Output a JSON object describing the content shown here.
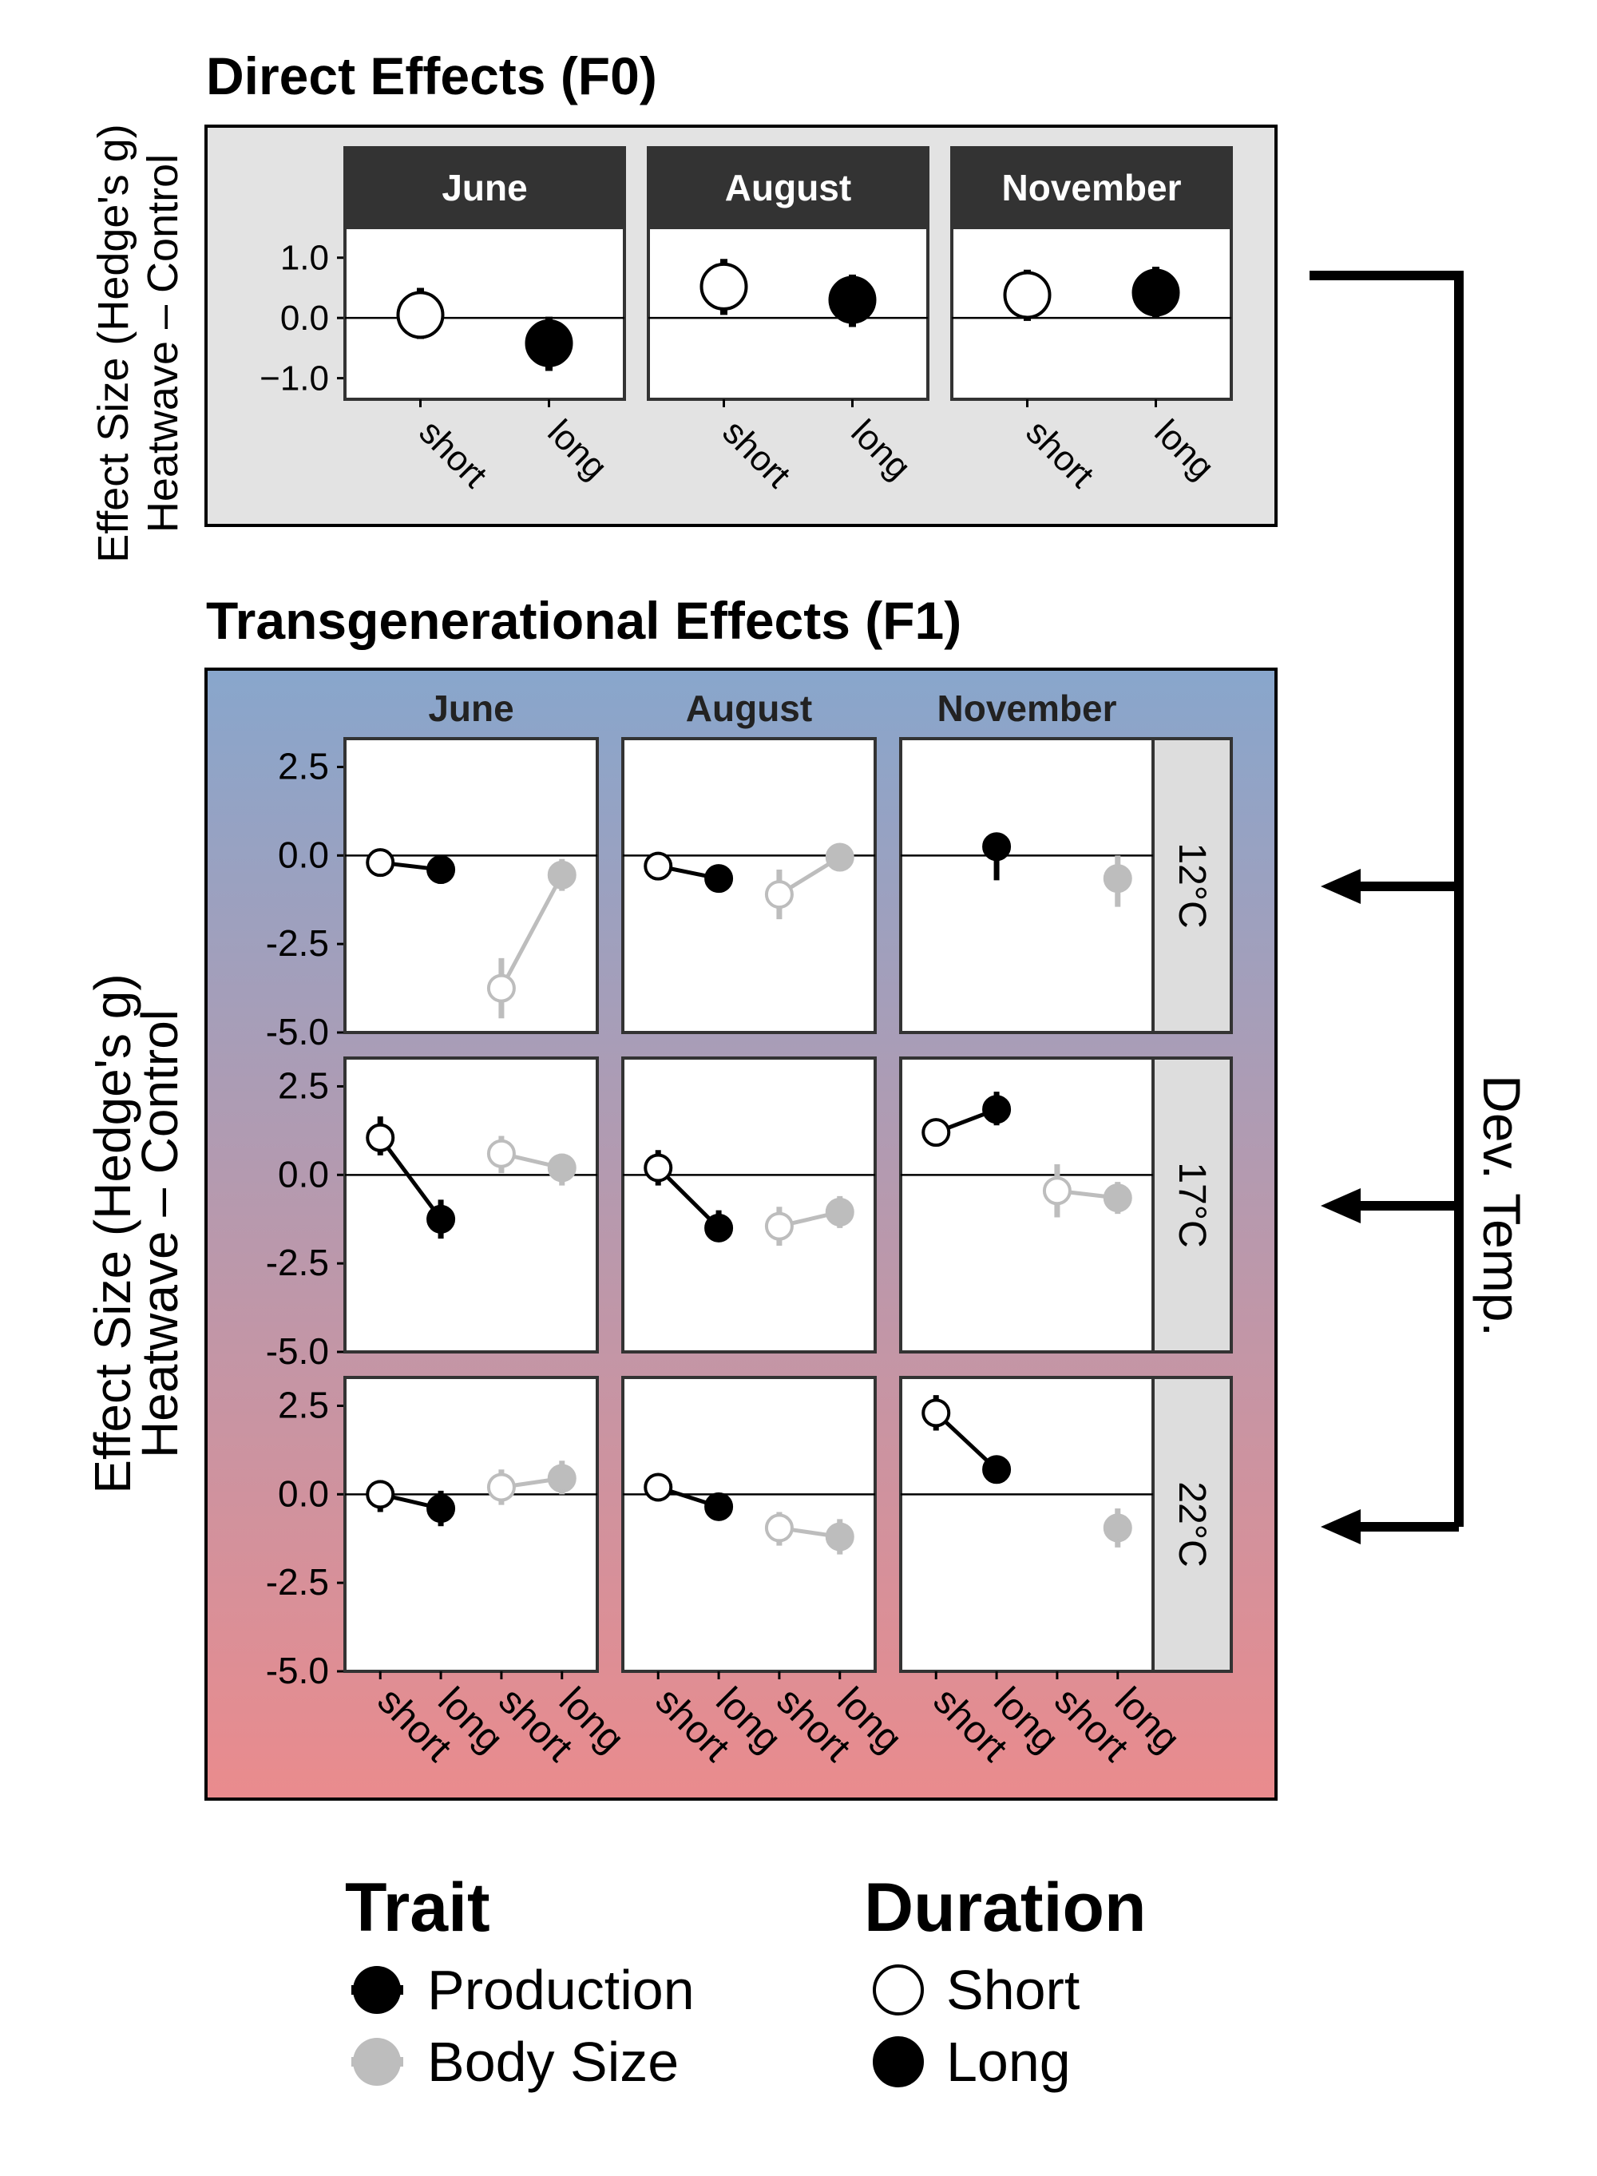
{
  "colors": {
    "production": "#000000",
    "body_size": "#bdbdbd",
    "f0_background": "#e3e3e3",
    "f1_gradient_top": "#88a6cc",
    "f1_gradient_bottom": "#ea8b8d",
    "strip_dark": "#333333",
    "strip_light": "#dddddd"
  },
  "chart_data": [
    {
      "id": "F0",
      "type": "scatter",
      "title": "Direct Effects (F0)",
      "ylabel_line1": "Effect Size (Hedge's g)",
      "ylabel_line2": "Heatwave – Control",
      "ylim": [
        -1.35,
        1.5
      ],
      "yticks": [
        1.0,
        0.0,
        -1.0
      ],
      "ytick_labels": [
        "1.0",
        "0.0",
        "−1.0"
      ],
      "columns": [
        "June",
        "August",
        "November"
      ],
      "x_categories": [
        "short",
        "long"
      ],
      "panels": [
        {
          "column": "June",
          "points": [
            {
              "x": "short",
              "y": 0.05,
              "ylo": -0.35,
              "yhi": 0.5
            },
            {
              "x": "long",
              "y": -0.42,
              "ylo": -0.88,
              "yhi": 0.02
            }
          ]
        },
        {
          "column": "August",
          "points": [
            {
              "x": "short",
              "y": 0.52,
              "ylo": 0.05,
              "yhi": 0.98
            },
            {
              "x": "long",
              "y": 0.3,
              "ylo": -0.15,
              "yhi": 0.72
            }
          ]
        },
        {
          "column": "November",
          "points": [
            {
              "x": "short",
              "y": 0.38,
              "ylo": -0.05,
              "yhi": 0.8
            },
            {
              "x": "long",
              "y": 0.42,
              "ylo": 0.0,
              "yhi": 0.85
            }
          ]
        }
      ]
    },
    {
      "id": "F1",
      "type": "line",
      "title": "Transgenerational Effects (F1)",
      "ylabel_line1": "Effect Size (Hedge's g)",
      "ylabel_line2": "Heatwave – Control",
      "ylim": [
        -5.0,
        3.3
      ],
      "yticks": [
        2.5,
        0.0,
        -2.5,
        -5.0
      ],
      "ytick_labels": [
        "2.5",
        "0.0",
        "-2.5",
        "-5.0"
      ],
      "columns": [
        "June",
        "August",
        "November"
      ],
      "rows": [
        "12°C",
        "17°C",
        "22°C"
      ],
      "row_axis_label": "Dev. Temp.",
      "x_categories": [
        "short",
        "long",
        "short",
        "long"
      ],
      "panels": [
        {
          "row": "12°C",
          "column": "June",
          "production": [
            {
              "y": -0.2,
              "ylo": -0.6,
              "yhi": 0.2
            },
            {
              "y": -0.4,
              "ylo": -0.8,
              "yhi": 0.0
            }
          ],
          "body_size": [
            {
              "y": -3.75,
              "ylo": -4.6,
              "yhi": -2.9
            },
            {
              "y": -0.55,
              "ylo": -1.0,
              "yhi": -0.1
            }
          ]
        },
        {
          "row": "12°C",
          "column": "August",
          "production": [
            {
              "y": -0.3,
              "ylo": -0.7,
              "yhi": 0.1
            },
            {
              "y": -0.65,
              "ylo": -1.0,
              "yhi": -0.3
            }
          ],
          "body_size": [
            {
              "y": -1.1,
              "ylo": -1.8,
              "yhi": -0.4
            },
            {
              "y": -0.05,
              "ylo": -0.4,
              "yhi": 0.3
            }
          ]
        },
        {
          "row": "12°C",
          "column": "November",
          "production": [
            null,
            {
              "y": 0.25,
              "ylo": -0.7,
              "yhi": 0.55
            }
          ],
          "body_size": [
            null,
            {
              "y": -0.65,
              "ylo": -1.45,
              "yhi": 0.0
            }
          ]
        },
        {
          "row": "17°C",
          "column": "June",
          "production": [
            {
              "y": 1.05,
              "ylo": 0.55,
              "yhi": 1.65
            },
            {
              "y": -1.25,
              "ylo": -1.8,
              "yhi": -0.7
            }
          ],
          "body_size": [
            {
              "y": 0.6,
              "ylo": 0.05,
              "yhi": 1.1
            },
            {
              "y": 0.2,
              "ylo": -0.3,
              "yhi": 0.6
            }
          ]
        },
        {
          "row": "17°C",
          "column": "August",
          "production": [
            {
              "y": 0.2,
              "ylo": -0.3,
              "yhi": 0.7
            },
            {
              "y": -1.5,
              "ylo": -1.9,
              "yhi": -1.0
            }
          ],
          "body_size": [
            {
              "y": -1.45,
              "ylo": -2.0,
              "yhi": -0.9
            },
            {
              "y": -1.05,
              "ylo": -1.5,
              "yhi": -0.6
            }
          ]
        },
        {
          "row": "17°C",
          "column": "November",
          "production": [
            {
              "y": 1.2,
              "ylo": 0.9,
              "yhi": 1.5
            },
            {
              "y": 1.85,
              "ylo": 1.4,
              "yhi": 2.35
            }
          ],
          "body_size": [
            {
              "y": -0.45,
              "ylo": -1.2,
              "yhi": 0.3
            },
            {
              "y": -0.65,
              "ylo": -1.1,
              "yhi": -0.2
            }
          ]
        },
        {
          "row": "22°C",
          "column": "June",
          "production": [
            {
              "y": 0.0,
              "ylo": -0.5,
              "yhi": 0.4
            },
            {
              "y": -0.4,
              "ylo": -0.9,
              "yhi": 0.1
            }
          ],
          "body_size": [
            {
              "y": 0.2,
              "ylo": -0.3,
              "yhi": 0.7
            },
            {
              "y": 0.45,
              "ylo": 0.0,
              "yhi": 0.95
            }
          ]
        },
        {
          "row": "22°C",
          "column": "August",
          "production": [
            {
              "y": 0.2,
              "ylo": -0.2,
              "yhi": 0.5
            },
            {
              "y": -0.35,
              "ylo": -0.7,
              "yhi": 0.0
            }
          ],
          "body_size": [
            {
              "y": -0.95,
              "ylo": -1.45,
              "yhi": -0.5
            },
            {
              "y": -1.2,
              "ylo": -1.7,
              "yhi": -0.7
            }
          ]
        },
        {
          "row": "22°C",
          "column": "November",
          "production": [
            {
              "y": 2.3,
              "ylo": 1.8,
              "yhi": 2.8
            },
            {
              "y": 0.7,
              "ylo": 0.45,
              "yhi": 0.95
            }
          ],
          "body_size": [
            null,
            {
              "y": -0.95,
              "ylo": -1.5,
              "yhi": -0.4
            }
          ]
        }
      ]
    }
  ],
  "legend": {
    "trait_title": "Trait",
    "trait_items": [
      {
        "label": "Production",
        "color": "#000000"
      },
      {
        "label": "Body Size",
        "color": "#bdbdbd"
      }
    ],
    "duration_title": "Duration",
    "duration_items": [
      {
        "label": "Short",
        "fill": "#ffffff"
      },
      {
        "label": "Long",
        "fill": "#000000"
      }
    ]
  }
}
